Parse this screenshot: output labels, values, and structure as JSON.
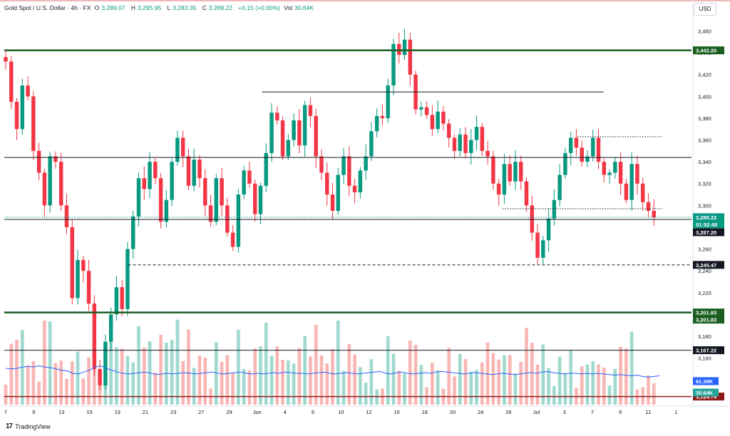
{
  "header": {
    "symbol": "Gold Spot / U.S. Dollar · 4h · FX",
    "open_label": "O",
    "open": "3,289.07",
    "high_label": "H",
    "high": "3,295.95",
    "low_label": "L",
    "low": "3,283.35",
    "close_label": "C",
    "close": "3,289.22",
    "change": "+0.15 (+0.00%)",
    "vol_label": "Vol",
    "vol": "30.64K"
  },
  "currency": "USD",
  "brand": "TradingView",
  "colors": {
    "up": "#089981",
    "down": "#f23645",
    "level_green": "#1b5e20",
    "level_red": "#8b1a1a",
    "volume_ma": "#2962ff"
  },
  "chart_data": {
    "type": "candlestick",
    "y_ticks": [
      3140,
      3160,
      3180,
      3200,
      3220,
      3240,
      3260,
      3280,
      3300,
      3320,
      3340,
      3360,
      3380,
      3400,
      3420,
      3440,
      3460
    ],
    "y_range": [
      3116,
      3474
    ],
    "x_labels": [
      "7",
      "9",
      "13",
      "15",
      "19",
      "21",
      "23",
      "27",
      "29",
      "Jun",
      "4",
      "6",
      "10",
      "12",
      "16",
      "18",
      "20",
      "24",
      "26",
      "Jul",
      "3",
      "7",
      "9",
      "11",
      "1"
    ],
    "price_labels": [
      {
        "value": 3442.2,
        "text": "3,442.20",
        "color": "#1b5e20"
      },
      {
        "value": 3289.22,
        "text": "3,289.22",
        "color": "#089981"
      },
      {
        "value": 3289.22,
        "text": "01:52:48",
        "color": "#089981",
        "offset": 1
      },
      {
        "value": 3287.2,
        "text": "3,287.20",
        "color": "#131722"
      },
      {
        "value": 3245.47,
        "text": "3,245.47",
        "color": "#131722"
      },
      {
        "value": 3201.83,
        "text": "3,201.83",
        "color": "#1b5e20"
      },
      {
        "value": 3201.83,
        "text": "3,201.83",
        "color": "#1b5e20",
        "offset": 1
      },
      {
        "value": 3167.22,
        "text": "3,167.22",
        "color": "#131722"
      },
      {
        "value": 3124.74,
        "text": "3,124.74",
        "color": "#8b1a1a"
      }
    ],
    "volume_labels": [
      {
        "text": "61.38K",
        "color": "#2962ff"
      },
      {
        "text": "30.64K",
        "color": "#26a69a"
      }
    ],
    "levels": [
      {
        "value": 3442.2,
        "style": "thick",
        "color": "#1b5e20",
        "x0": 0.0,
        "x1": 1.0
      },
      {
        "value": 3404,
        "style": "thin",
        "color": "#131722",
        "x0": 0.375,
        "x1": 0.872
      },
      {
        "value": 3344,
        "style": "thin",
        "color": "#131722",
        "x0": 0.0,
        "x1": 1.0
      },
      {
        "value": 3363,
        "style": "dotted",
        "color": "#131722",
        "x0": 0.834,
        "x1": 0.958
      },
      {
        "value": 3297,
        "style": "dotted",
        "color": "#131722",
        "x0": 0.725,
        "x1": 0.958
      },
      {
        "value": 3287.2,
        "style": "thin",
        "color": "#131722",
        "x0": 0.0,
        "x1": 1.0
      },
      {
        "value": 3289.22,
        "style": "dotted",
        "color": "#089981",
        "x0": 0.0,
        "x1": 1.0
      },
      {
        "value": 3245.47,
        "style": "dashed",
        "color": "#131722",
        "x0": 0.18,
        "x1": 1.0
      },
      {
        "value": 3201.83,
        "style": "thick",
        "color": "#1b5e20",
        "x0": 0.0,
        "x1": 1.0
      },
      {
        "value": 3167.22,
        "style": "thin",
        "color": "#131722",
        "x0": 0.0,
        "x1": 1.0
      },
      {
        "value": 3124.74,
        "style": "medium",
        "color": "#8b1a1a",
        "x0": 0.0,
        "x1": 1.0
      }
    ],
    "closes": [
      3432,
      3395,
      3370,
      3410,
      3400,
      3350,
      3330,
      3300,
      3345,
      3340,
      3300,
      3280,
      3215,
      3250,
      3240,
      3210,
      3150,
      3135,
      3175,
      3200,
      3225,
      3205,
      3260,
      3290,
      3325,
      3315,
      3340,
      3325,
      3285,
      3305,
      3340,
      3362,
      3345,
      3318,
      3342,
      3325,
      3300,
      3285,
      3325,
      3300,
      3275,
      3262,
      3310,
      3332,
      3320,
      3292,
      3318,
      3348,
      3385,
      3378,
      3345,
      3360,
      3378,
      3355,
      3392,
      3382,
      3345,
      3330,
      3310,
      3295,
      3328,
      3345,
      3318,
      3312,
      3332,
      3345,
      3368,
      3382,
      3380,
      3410,
      3448,
      3438,
      3452,
      3420,
      3388,
      3390,
      3383,
      3370,
      3386,
      3375,
      3362,
      3350,
      3365,
      3348,
      3360,
      3372,
      3350,
      3345,
      3320,
      3310,
      3338,
      3322,
      3340,
      3322,
      3300,
      3275,
      3252,
      3268,
      3288,
      3305,
      3328,
      3348,
      3362,
      3353,
      3340,
      3345,
      3362,
      3340,
      3328,
      3330,
      3340,
      3320,
      3305,
      3338,
      3320,
      3303,
      3295,
      3289
    ],
    "volume_ma": [
      0.58,
      0.57,
      0.58,
      0.6,
      0.61,
      0.6,
      0.62,
      0.6,
      0.59,
      0.57,
      0.55,
      0.54,
      0.5,
      0.49,
      0.52,
      0.55,
      0.6,
      0.62,
      0.58,
      0.55,
      0.52,
      0.5,
      0.49,
      0.5,
      0.51,
      0.52,
      0.5,
      0.48,
      0.49,
      0.5,
      0.49,
      0.5,
      0.51,
      0.5,
      0.49,
      0.5,
      0.51,
      0.52,
      0.5,
      0.49,
      0.5,
      0.51,
      0.52,
      0.5,
      0.49,
      0.5,
      0.49,
      0.5,
      0.51,
      0.5,
      0.52,
      0.51,
      0.5,
      0.5,
      0.49,
      0.5,
      0.51,
      0.52,
      0.5,
      0.49,
      0.5,
      0.51,
      0.5,
      0.49,
      0.5,
      0.51,
      0.52,
      0.53,
      0.5,
      0.49,
      0.51,
      0.52,
      0.5,
      0.49,
      0.5,
      0.51,
      0.5,
      0.52,
      0.53,
      0.52,
      0.51,
      0.5,
      0.49,
      0.5,
      0.51,
      0.5,
      0.49,
      0.48,
      0.49,
      0.5,
      0.49,
      0.48,
      0.49,
      0.5,
      0.51,
      0.5,
      0.52,
      0.53,
      0.51,
      0.5,
      0.49,
      0.5,
      0.5,
      0.49,
      0.5,
      0.49,
      0.5,
      0.49,
      0.48,
      0.47,
      0.48,
      0.47,
      0.46,
      0.47,
      0.45,
      0.44,
      0.45,
      0.46
    ]
  }
}
